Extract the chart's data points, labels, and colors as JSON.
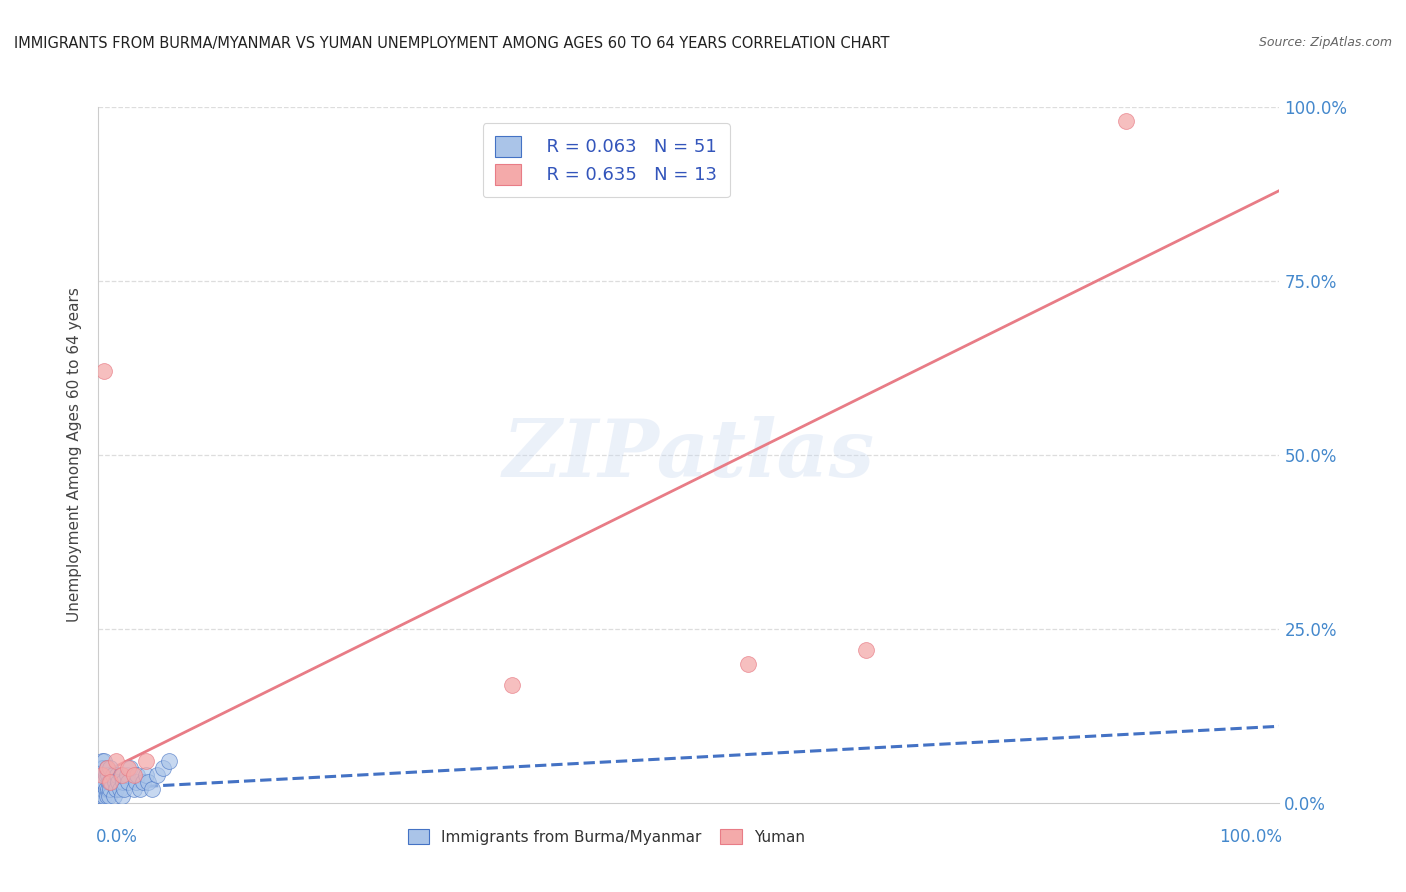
{
  "title": "IMMIGRANTS FROM BURMA/MYANMAR VS YUMAN UNEMPLOYMENT AMONG AGES 60 TO 64 YEARS CORRELATION CHART",
  "source": "Source: ZipAtlas.com",
  "ylabel": "Unemployment Among Ages 60 to 64 years",
  "watermark": "ZIPatlas",
  "legend_blue_r": "R = 0.063",
  "legend_blue_n": "N = 51",
  "legend_pink_r": "R = 0.635",
  "legend_pink_n": "N = 13",
  "legend_label_blue": "Immigrants from Burma/Myanmar",
  "legend_label_pink": "Yuman",
  "blue_scatter_x": [
    0.001,
    0.001,
    0.002,
    0.002,
    0.002,
    0.003,
    0.003,
    0.003,
    0.003,
    0.004,
    0.004,
    0.004,
    0.005,
    0.005,
    0.005,
    0.006,
    0.006,
    0.007,
    0.007,
    0.008,
    0.008,
    0.009,
    0.009,
    0.01,
    0.01,
    0.011,
    0.012,
    0.013,
    0.014,
    0.015,
    0.016,
    0.017,
    0.018,
    0.019,
    0.02,
    0.021,
    0.022,
    0.024,
    0.025,
    0.027,
    0.03,
    0.032,
    0.033,
    0.035,
    0.038,
    0.04,
    0.042,
    0.045,
    0.05,
    0.055,
    0.06
  ],
  "blue_scatter_y": [
    0.02,
    0.04,
    0.01,
    0.03,
    0.05,
    0.01,
    0.02,
    0.04,
    0.06,
    0.02,
    0.03,
    0.05,
    0.01,
    0.03,
    0.06,
    0.02,
    0.04,
    0.01,
    0.05,
    0.02,
    0.04,
    0.01,
    0.03,
    0.02,
    0.05,
    0.03,
    0.04,
    0.01,
    0.03,
    0.02,
    0.04,
    0.03,
    0.02,
    0.04,
    0.01,
    0.03,
    0.02,
    0.04,
    0.03,
    0.05,
    0.02,
    0.03,
    0.04,
    0.02,
    0.03,
    0.04,
    0.03,
    0.02,
    0.04,
    0.05,
    0.06
  ],
  "pink_scatter_x": [
    0.003,
    0.007,
    0.01,
    0.015,
    0.02,
    0.025,
    0.03,
    0.04,
    0.35,
    0.55,
    0.65,
    0.87,
    0.005
  ],
  "pink_scatter_y": [
    0.04,
    0.05,
    0.03,
    0.06,
    0.04,
    0.05,
    0.04,
    0.06,
    0.17,
    0.2,
    0.22,
    0.98,
    0.62
  ],
  "blue_line_color": "#4472c4",
  "pink_line_color": "#e87c86",
  "blue_scatter_color": "#aac4e8",
  "pink_scatter_color": "#f4aaaa",
  "grid_color": "#dddddd",
  "background_color": "#ffffff",
  "title_color": "#222222",
  "source_color": "#666666",
  "axis_label_color": "#444444",
  "right_tick_color": "#4488cc",
  "bottom_tick_color": "#4488cc",
  "xlim": [
    0.0,
    1.0
  ],
  "ylim": [
    0.0,
    1.0
  ],
  "blue_trend_x": [
    0.0,
    1.0
  ],
  "blue_trend_y": [
    0.02,
    0.11
  ],
  "pink_trend_x": [
    0.0,
    1.0
  ],
  "pink_trend_y": [
    0.04,
    0.88
  ]
}
